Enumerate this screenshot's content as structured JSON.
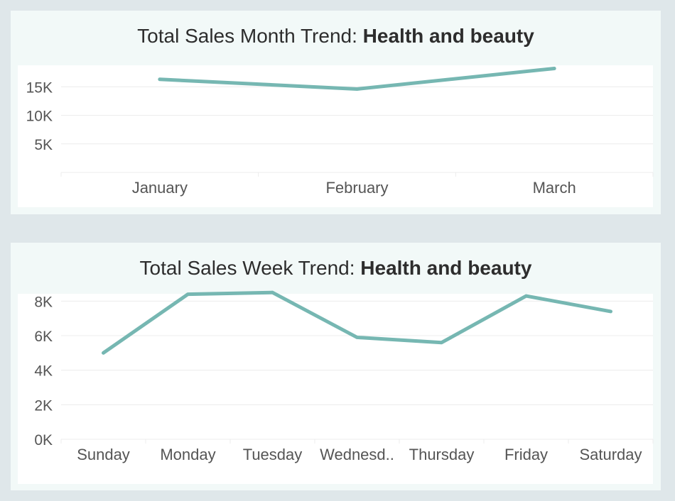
{
  "chart_data": [
    {
      "type": "line",
      "title_prefix": "Total Sales Month Trend: ",
      "title_emphasis": "Health and beauty",
      "categories": [
        "January",
        "February",
        "March"
      ],
      "values": [
        16300,
        14600,
        18200
      ],
      "yticks": [
        "5K",
        "10K",
        "15K"
      ],
      "ytick_values": [
        5000,
        10000,
        15000
      ],
      "ylim": [
        0,
        20000
      ],
      "grid": true,
      "color": "#76b7b2"
    },
    {
      "type": "line",
      "title_prefix": "Total Sales Week Trend: ",
      "title_emphasis": "Health and beauty",
      "categories": [
        "Sunday",
        "Monday",
        "Tuesday",
        "Wednesd..",
        "Thursday",
        "Friday",
        "Saturday"
      ],
      "values": [
        5000,
        8400,
        8500,
        5900,
        5600,
        8300,
        7400
      ],
      "yticks": [
        "0K",
        "2K",
        "4K",
        "6K",
        "8K"
      ],
      "ytick_values": [
        0,
        2000,
        4000,
        6000,
        8000
      ],
      "ylim": [
        0,
        9000
      ],
      "grid": true,
      "color": "#76b7b2"
    }
  ]
}
